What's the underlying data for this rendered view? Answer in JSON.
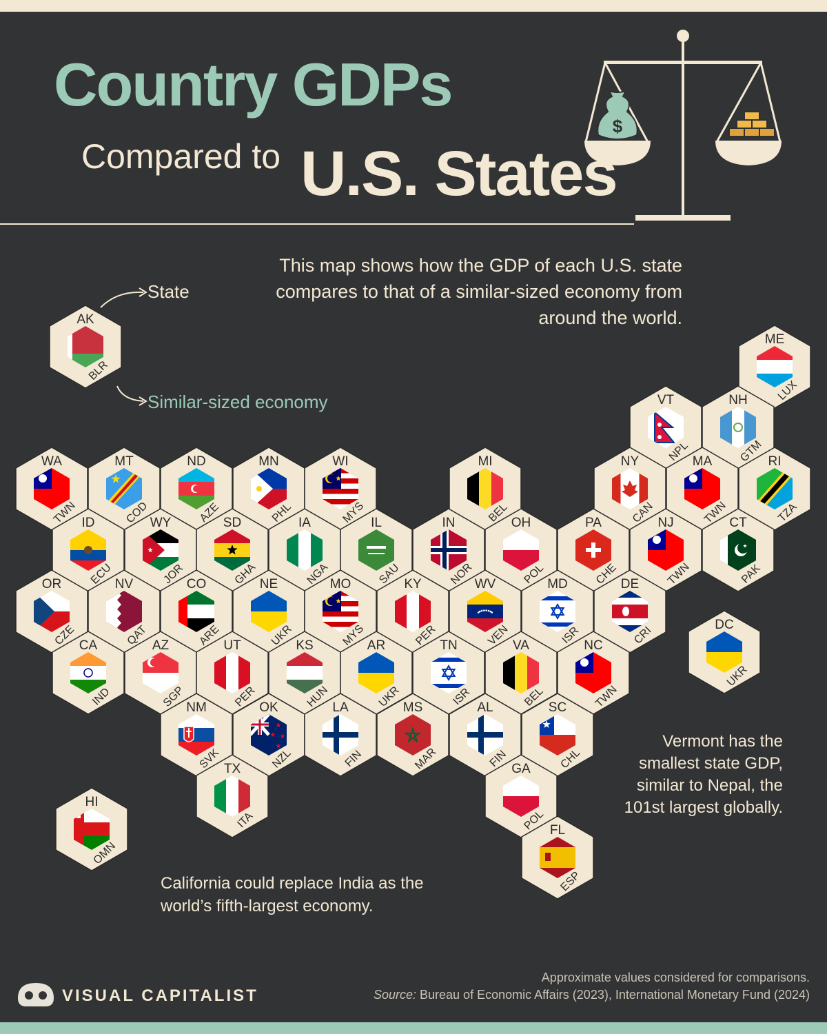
{
  "title": {
    "line1": "Country GDPs",
    "line2a": "Compared to",
    "line2b": "U.S. States"
  },
  "intro": "This map shows how the GDP of each U.S. state compares to that of a similar-sized economy from around the world.",
  "legend": {
    "state_label": "State",
    "economy_label": "Similar-sized economy",
    "example_state": "AK",
    "example_country": "BLR",
    "example_flag": "BLR"
  },
  "notes": {
    "vermont": "Vermont has the smallest state GDP, similar to Nepal, the 101st largest globally.",
    "california": "California could replace India as the world’s fifth-largest economy."
  },
  "footer": {
    "approx": "Approximate values considered for comparisons.",
    "source_label": "Source:",
    "source_text": "Bureau of Economic Affairs (2023), International Monetary Fund (2024)",
    "brand": "VISUAL CAPITALIST"
  },
  "icons": {
    "scale": "balance-scale-icon",
    "money": "money-bag-icon",
    "gold": "gold-bars-icon",
    "logo": "visual-capitalist-logo"
  },
  "colors": {
    "background": "#323334",
    "cream": "#f3e8d3",
    "mint": "#9ccab7"
  },
  "states": [
    {
      "state": "ME",
      "country": "LUX"
    },
    {
      "state": "VT",
      "country": "NPL"
    },
    {
      "state": "NH",
      "country": "GTM"
    },
    {
      "state": "WA",
      "country": "TWN"
    },
    {
      "state": "MT",
      "country": "COD"
    },
    {
      "state": "ND",
      "country": "AZE"
    },
    {
      "state": "MN",
      "country": "PHL"
    },
    {
      "state": "WI",
      "country": "MYS"
    },
    {
      "state": "MI",
      "country": "BEL"
    },
    {
      "state": "NY",
      "country": "CAN"
    },
    {
      "state": "MA",
      "country": "TWN"
    },
    {
      "state": "RI",
      "country": "TZA"
    },
    {
      "state": "ID",
      "country": "ECU"
    },
    {
      "state": "WY",
      "country": "JOR"
    },
    {
      "state": "SD",
      "country": "GHA"
    },
    {
      "state": "IA",
      "country": "NGA"
    },
    {
      "state": "IL",
      "country": "SAU"
    },
    {
      "state": "IN",
      "country": "NOR"
    },
    {
      "state": "OH",
      "country": "POL"
    },
    {
      "state": "PA",
      "country": "CHE"
    },
    {
      "state": "NJ",
      "country": "TWN"
    },
    {
      "state": "CT",
      "country": "PAK"
    },
    {
      "state": "OR",
      "country": "CZE"
    },
    {
      "state": "NV",
      "country": "QAT"
    },
    {
      "state": "CO",
      "country": "ARE"
    },
    {
      "state": "NE",
      "country": "UKR"
    },
    {
      "state": "MO",
      "country": "MYS"
    },
    {
      "state": "KY",
      "country": "PER"
    },
    {
      "state": "WV",
      "country": "VEN"
    },
    {
      "state": "MD",
      "country": "ISR"
    },
    {
      "state": "DE",
      "country": "CRI"
    },
    {
      "state": "DC",
      "country": "UKR"
    },
    {
      "state": "CA",
      "country": "IND"
    },
    {
      "state": "AZ",
      "country": "SGP"
    },
    {
      "state": "UT",
      "country": "PER"
    },
    {
      "state": "KS",
      "country": "HUN"
    },
    {
      "state": "AR",
      "country": "UKR"
    },
    {
      "state": "TN",
      "country": "ISR"
    },
    {
      "state": "VA",
      "country": "BEL"
    },
    {
      "state": "NC",
      "country": "TWN"
    },
    {
      "state": "NM",
      "country": "SVK"
    },
    {
      "state": "OK",
      "country": "NZL"
    },
    {
      "state": "LA",
      "country": "FIN"
    },
    {
      "state": "MS",
      "country": "MAR"
    },
    {
      "state": "AL",
      "country": "FIN"
    },
    {
      "state": "SC",
      "country": "CHL"
    },
    {
      "state": "TX",
      "country": "ITA"
    },
    {
      "state": "GA",
      "country": "POL"
    },
    {
      "state": "HI",
      "country": "OMN"
    },
    {
      "state": "FL",
      "country": "ESP"
    }
  ]
}
